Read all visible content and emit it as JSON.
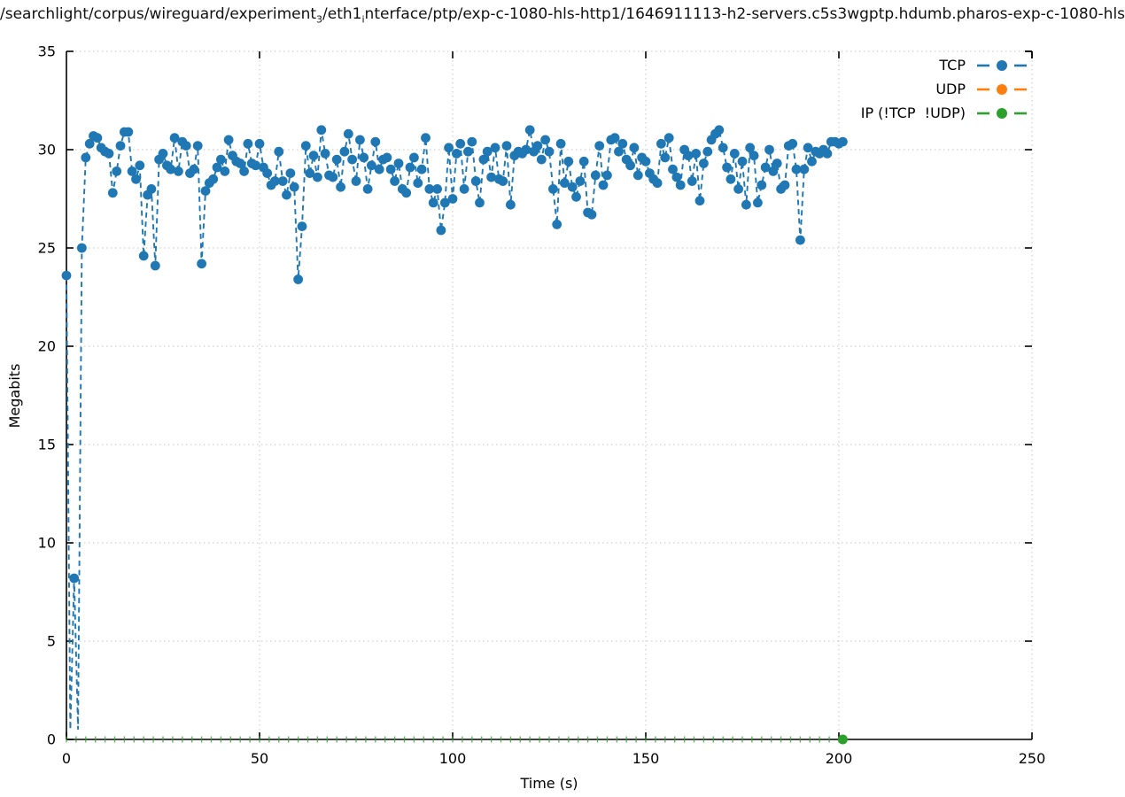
{
  "title": {
    "part1": "/searchlight/corpus/wireguard/experiment",
    "sub1": "3",
    "part2": "/eth1",
    "sub2": "i",
    "part3": "nterface/ptp/exp-c-1080-hls-http1/1646911113-h2-servers.c5s3wgptp.hdumb.pharos-exp-c-1080-hls"
  },
  "axes": {
    "xlabel": "Time (s)",
    "ylabel": "Megabits",
    "xlim": [
      0,
      250
    ],
    "ylim": [
      0,
      35
    ],
    "xticks": [
      0,
      50,
      100,
      150,
      200,
      250
    ],
    "yticks": [
      0,
      5,
      10,
      15,
      20,
      25,
      30,
      35
    ],
    "grid": "dotted light-gray at every major tick"
  },
  "legend": [
    {
      "label": "TCP",
      "color": "#1f77b4"
    },
    {
      "label": "UDP",
      "color": "#ff7f0e"
    },
    {
      "label": "IP (!TCP  !UDP)",
      "color": "#2ca02c"
    }
  ],
  "chart_data": {
    "type": "line",
    "xlabel": "Time (s)",
    "ylabel": "Megabits",
    "xlim": [
      0,
      250
    ],
    "ylim": [
      0,
      35
    ],
    "legend_position": "top-right-inside",
    "style": "dashed lines with filled circle markers, 1-second samples",
    "series": [
      {
        "name": "TCP",
        "color": "#1f77b4",
        "x_start": 0,
        "x_step": 1,
        "marker_min": 1,
        "values": [
          23.6,
          0.5,
          8.2,
          0.5,
          25.0,
          29.6,
          30.3,
          30.7,
          30.6,
          30.1,
          29.9,
          29.8,
          27.8,
          28.9,
          30.2,
          30.9,
          30.9,
          28.9,
          28.5,
          29.2,
          24.6,
          27.7,
          28.0,
          24.1,
          29.5,
          29.8,
          29.2,
          29.0,
          30.6,
          28.9,
          30.4,
          30.2,
          28.8,
          29.0,
          30.2,
          24.2,
          27.9,
          28.3,
          28.5,
          29.1,
          29.5,
          28.9,
          30.5,
          29.7,
          29.4,
          29.3,
          28.9,
          30.3,
          29.3,
          29.2,
          30.3,
          29.1,
          28.8,
          28.2,
          28.4,
          29.9,
          28.4,
          27.7,
          28.8,
          28.1,
          23.4,
          26.1,
          30.2,
          28.8,
          29.7,
          28.6,
          31.0,
          29.8,
          28.7,
          28.6,
          29.5,
          28.1,
          29.9,
          30.8,
          29.5,
          28.4,
          30.5,
          29.6,
          28.0,
          29.2,
          30.4,
          29.0,
          29.5,
          29.6,
          29.0,
          28.4,
          29.3,
          28.0,
          27.8,
          29.1,
          29.6,
          28.3,
          29.0,
          30.6,
          28.0,
          27.3,
          28.0,
          25.9,
          27.3,
          30.1,
          27.5,
          29.8,
          30.3,
          28.0,
          29.9,
          30.4,
          28.4,
          27.3,
          29.5,
          29.9,
          28.6,
          30.1,
          28.5,
          28.4,
          30.2,
          27.2,
          29.7,
          29.9,
          29.8,
          30.0,
          31.0,
          29.9,
          30.2,
          29.5,
          30.5,
          29.9,
          28.0,
          26.2,
          30.3,
          28.3,
          29.4,
          28.1,
          27.6,
          28.4,
          29.4,
          26.8,
          26.7,
          28.7,
          30.2,
          28.2,
          28.7,
          30.5,
          30.6,
          29.9,
          30.3,
          29.5,
          29.2,
          30.1,
          28.7,
          29.6,
          29.4,
          28.8,
          28.5,
          28.3,
          30.3,
          29.6,
          30.6,
          29.0,
          28.6,
          28.2,
          30.0,
          29.7,
          28.4,
          29.8,
          27.4,
          29.3,
          29.9,
          30.5,
          30.8,
          31.0,
          30.1,
          29.1,
          28.5,
          29.8,
          28.0,
          29.4,
          27.2,
          30.1,
          29.7,
          27.3,
          28.2,
          29.1,
          30.0,
          28.9,
          29.3,
          28.0,
          28.2,
          30.2,
          30.3,
          29.0,
          25.4,
          29.0,
          30.1,
          29.4,
          29.9,
          29.8,
          30.0,
          29.8,
          30.4,
          30.4,
          30.3,
          30.4
        ]
      },
      {
        "name": "UDP",
        "color": "#ff7f0e",
        "values": [],
        "note": "legend entry only - no visible data points"
      },
      {
        "name": "IP (!TCP  !UDP)",
        "color": "#2ca02c",
        "constant_value": 0,
        "x_start": 0,
        "x_end": 201,
        "tick_interval": 2.5,
        "marker_at_end": true,
        "note": "flat at 0 along x-axis, small tick marks, filled circle at final point"
      }
    ]
  }
}
